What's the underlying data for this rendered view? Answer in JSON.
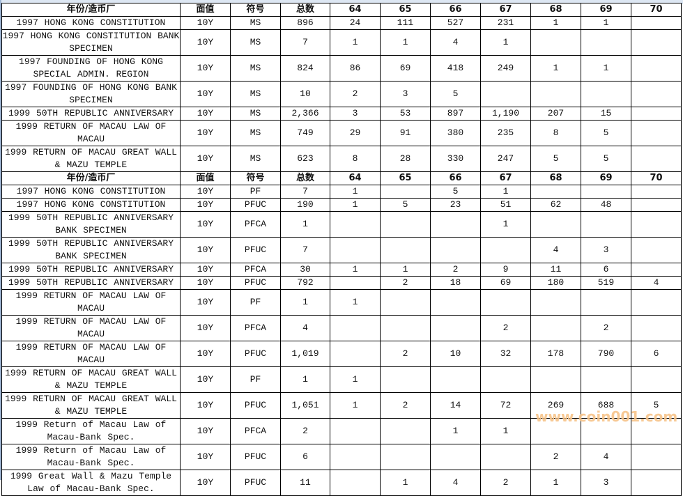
{
  "header": [
    "年份/造币厂",
    "面值",
    "符号",
    "总数",
    "64",
    "65",
    "66",
    "67",
    "68",
    "69",
    "70"
  ],
  "section1": [
    {
      "name": "1997 HONG KONG CONSTITUTION",
      "denom": "10Y",
      "grade": "MS",
      "total": "896",
      "g": [
        "24",
        "111",
        "527",
        "231",
        "1",
        "1",
        ""
      ]
    },
    {
      "name": "1997 HONG KONG CONSTITUTION BANK SPECIMEN",
      "denom": "10Y",
      "grade": "MS",
      "total": "7",
      "g": [
        "1",
        "1",
        "4",
        "1",
        "",
        "",
        ""
      ]
    },
    {
      "name": "1997 FOUNDING OF HONG KONG SPECIAL ADMIN. REGION",
      "denom": "10Y",
      "grade": "MS",
      "total": "824",
      "g": [
        "86",
        "69",
        "418",
        "249",
        "1",
        "1",
        ""
      ]
    },
    {
      "name": "1997 FOUNDING OF HONG KONG BANK SPECIMEN",
      "denom": "10Y",
      "grade": "MS",
      "total": "10",
      "g": [
        "2",
        "3",
        "5",
        "",
        "",
        "",
        ""
      ]
    },
    {
      "name": "1999 50TH REPUBLIC ANNIVERSARY",
      "denom": "10Y",
      "grade": "MS",
      "total": "2,366",
      "g": [
        "3",
        "53",
        "897",
        "1,190",
        "207",
        "15",
        ""
      ]
    },
    {
      "name": "1999 RETURN OF MACAU LAW OF MACAU",
      "denom": "10Y",
      "grade": "MS",
      "total": "749",
      "g": [
        "29",
        "91",
        "380",
        "235",
        "8",
        "5",
        ""
      ]
    },
    {
      "name": "1999 RETURN OF MACAU GREAT WALL & MAZU TEMPLE",
      "denom": "10Y",
      "grade": "MS",
      "total": "623",
      "g": [
        "8",
        "28",
        "330",
        "247",
        "5",
        "5",
        ""
      ]
    }
  ],
  "section2": [
    {
      "name": "1997 HONG KONG CONSTITUTION",
      "denom": "10Y",
      "grade": "PF",
      "total": "7",
      "g": [
        "1",
        "",
        "5",
        "1",
        "",
        "",
        ""
      ]
    },
    {
      "name": "1997 HONG KONG CONSTITUTION",
      "denom": "10Y",
      "grade": "PFUC",
      "total": "190",
      "g": [
        "1",
        "5",
        "23",
        "51",
        "62",
        "48",
        ""
      ]
    },
    {
      "name": "1999 50TH REPUBLIC ANNIVERSARY BANK SPECIMEN",
      "denom": "10Y",
      "grade": "PFCA",
      "total": "1",
      "g": [
        "",
        "",
        "",
        "1",
        "",
        "",
        ""
      ]
    },
    {
      "name": "1999 50TH REPUBLIC ANNIVERSARY BANK SPECIMEN",
      "denom": "10Y",
      "grade": "PFUC",
      "total": "7",
      "g": [
        "",
        "",
        "",
        "",
        "4",
        "3",
        ""
      ]
    },
    {
      "name": "1999 50TH REPUBLIC ANNIVERSARY",
      "denom": "10Y",
      "grade": "PFCA",
      "total": "30",
      "g": [
        "1",
        "1",
        "2",
        "9",
        "11",
        "6",
        ""
      ]
    },
    {
      "name": "1999 50TH REPUBLIC ANNIVERSARY",
      "denom": "10Y",
      "grade": "PFUC",
      "total": "792",
      "g": [
        "",
        "2",
        "18",
        "69",
        "180",
        "519",
        "4"
      ]
    },
    {
      "name": "1999 RETURN OF MACAU LAW OF MACAU",
      "denom": "10Y",
      "grade": "PF",
      "total": "1",
      "g": [
        "1",
        "",
        "",
        "",
        "",
        "",
        ""
      ]
    },
    {
      "name": "1999 RETURN OF MACAU LAW OF MACAU",
      "denom": "10Y",
      "grade": "PFCA",
      "total": "4",
      "g": [
        "",
        "",
        "",
        "2",
        "",
        "2",
        ""
      ]
    },
    {
      "name": "1999 RETURN OF MACAU LAW OF MACAU",
      "denom": "10Y",
      "grade": "PFUC",
      "total": "1,019",
      "g": [
        "",
        "2",
        "10",
        "32",
        "178",
        "790",
        "6"
      ]
    },
    {
      "name": "1999 RETURN OF MACAU GREAT WALL & MAZU TEMPLE",
      "denom": "10Y",
      "grade": "PF",
      "total": "1",
      "g": [
        "1",
        "",
        "",
        "",
        "",
        "",
        ""
      ]
    },
    {
      "name": "1999 RETURN OF MACAU GREAT WALL & MAZU TEMPLE",
      "denom": "10Y",
      "grade": "PFUC",
      "total": "1,051",
      "g": [
        "1",
        "2",
        "14",
        "72",
        "269",
        "688",
        "5"
      ]
    },
    {
      "name": "1999 Return of Macau Law of Macau-Bank Spec.",
      "denom": "10Y",
      "grade": "PFCA",
      "total": "2",
      "g": [
        "",
        "",
        "1",
        "1",
        "",
        "",
        ""
      ]
    },
    {
      "name": "1999 Return of Macau Law of Macau-Bank Spec.",
      "denom": "10Y",
      "grade": "PFUC",
      "total": "6",
      "g": [
        "",
        "",
        "",
        "",
        "2",
        "4",
        ""
      ]
    },
    {
      "name": "1999 Great Wall & Mazu Temple Law of Macau-Bank Spec.",
      "denom": "10Y",
      "grade": "PFUC",
      "total": "11",
      "g": [
        "",
        "1",
        "4",
        "2",
        "1",
        "3",
        ""
      ]
    }
  ],
  "watermark": "www.coin001.com"
}
